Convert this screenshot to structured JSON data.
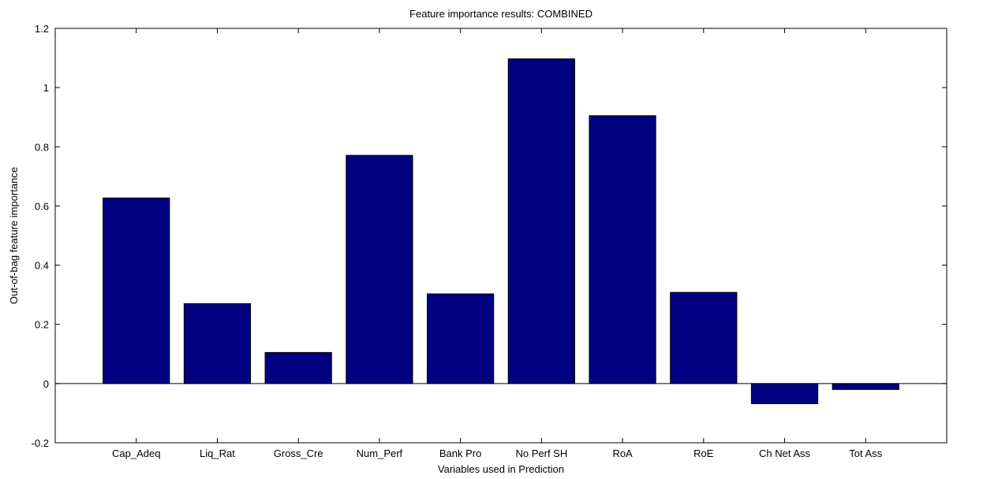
{
  "chart_data": {
    "type": "bar",
    "title": "Feature importance results: COMBINED",
    "xlabel": "Variables used in Prediction",
    "ylabel": "Out-of-bag feature importance",
    "categories": [
      "Cap_Adeq",
      "Liq_Rat",
      "Gross_Cre",
      "Num_Perf",
      "Bank Pro",
      "No Perf SH",
      "RoA",
      "RoE",
      "Ch Net Ass",
      "Tot Ass"
    ],
    "values": [
      0.627,
      0.27,
      0.105,
      0.771,
      0.303,
      1.097,
      0.905,
      0.308,
      -0.068,
      -0.02
    ],
    "ylim": [
      -0.2,
      1.2
    ],
    "yticks": [
      "-0.2",
      "0",
      "0.2",
      "0.4",
      "0.6",
      "0.8",
      "1",
      "1.2"
    ],
    "grid": false,
    "colors": {
      "bar_fill": "#000080",
      "bar_stroke": "#000000",
      "axis": "#000000",
      "background": "#ffffff"
    }
  }
}
